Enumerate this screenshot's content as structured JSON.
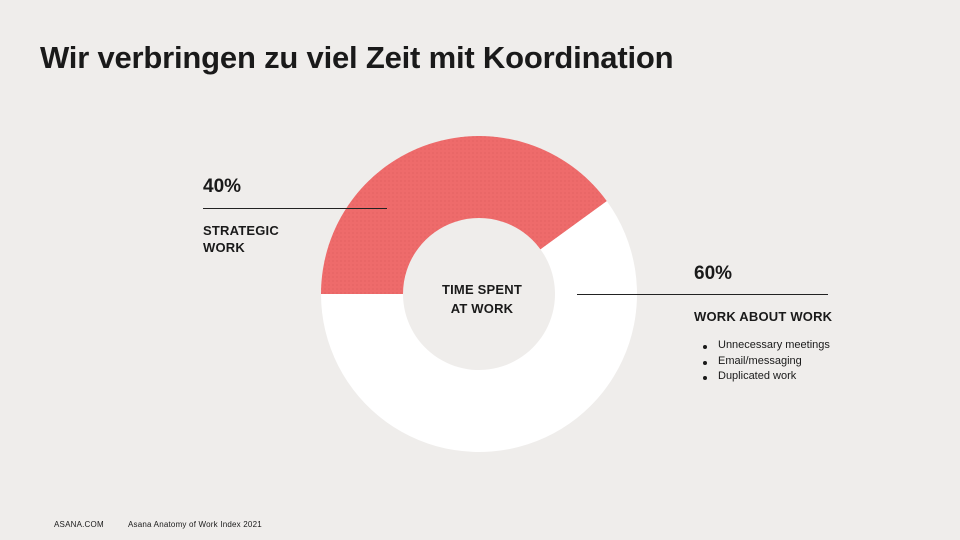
{
  "title": "Wir verbringen zu viel Zeit mit Koordination",
  "chart_data": {
    "type": "pie",
    "center_label": [
      "TIME SPENT",
      "AT WORK"
    ],
    "slices": [
      {
        "value": 40,
        "label": "40%",
        "category": [
          "STRATEGIC",
          "WORK"
        ],
        "color": "#ee6b6b"
      },
      {
        "value": 60,
        "label": "60%",
        "category": [
          "WORK ABOUT WORK"
        ],
        "color": "#ffffff"
      }
    ],
    "bullets": [
      "Unnecessary meetings",
      "Email/messaging",
      "Duplicated work"
    ]
  },
  "footer": {
    "site": "ASANA.COM",
    "source": "Asana Anatomy of Work Index 2021"
  }
}
